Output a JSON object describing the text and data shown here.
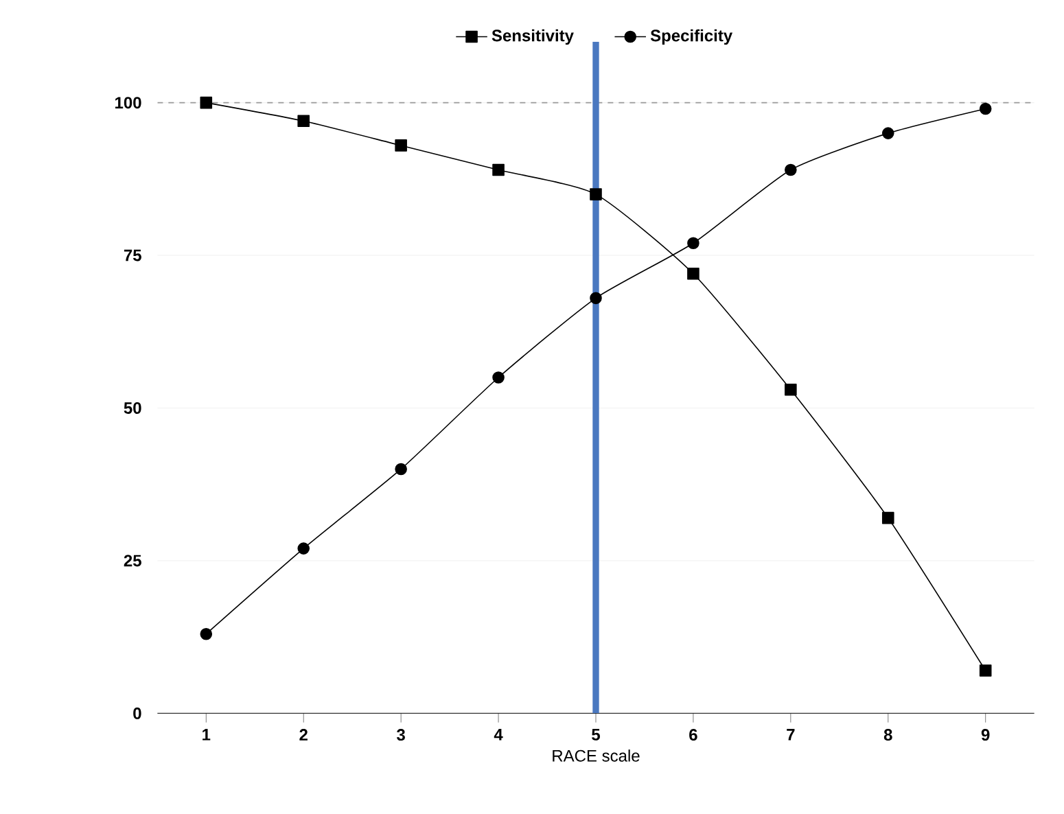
{
  "chart_data": {
    "type": "line",
    "xlabel": "RACE scale",
    "x": [
      1,
      2,
      3,
      4,
      5,
      6,
      7,
      8,
      9
    ],
    "series": [
      {
        "name": "Sensitivity",
        "color": "#000000",
        "marker": "square",
        "values": [
          100,
          97,
          93,
          89,
          85,
          72,
          53,
          32,
          7
        ]
      },
      {
        "name": "Specificity",
        "color": "#000000",
        "marker": "circle",
        "values": [
          13,
          27,
          40,
          55,
          68,
          77,
          89,
          95,
          99
        ]
      }
    ],
    "xlim": [
      0.5,
      9.5
    ],
    "ylim": [
      0,
      110
    ],
    "xticks": [
      1,
      2,
      3,
      4,
      5,
      6,
      7,
      8,
      9
    ],
    "yticks": [
      0,
      25,
      50,
      75,
      100
    ],
    "grid": "y",
    "legend": "top",
    "ref_lines": [
      {
        "axis": "y",
        "value": 100,
        "color": "#999999",
        "line_style": "dashed"
      },
      {
        "axis": "x",
        "value": 5,
        "color": "#4a78c0",
        "line_style": "solid"
      }
    ]
  }
}
